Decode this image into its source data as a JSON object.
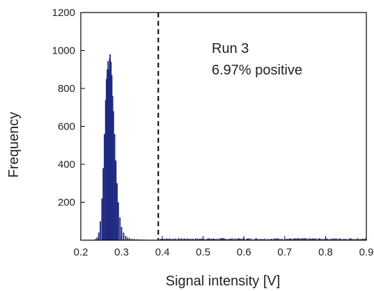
{
  "chart_data": {
    "type": "bar",
    "xlabel": "Signal intensity [V]",
    "ylabel": "Frequency",
    "xlim": [
      0.2,
      0.9
    ],
    "ylim": [
      0,
      1200
    ],
    "xticks": [
      0.2,
      0.3,
      0.4,
      0.5,
      0.6,
      0.7,
      0.8,
      0.9
    ],
    "xtick_labels": [
      "0.2",
      "0.3",
      "0.4",
      "0.5",
      "0.6",
      "0.7",
      "0.8",
      "0.9"
    ],
    "yticks": [
      200,
      400,
      600,
      800,
      1000,
      1200
    ],
    "ytick_labels": [
      "200",
      "400",
      "600",
      "800",
      "1000",
      "1200"
    ],
    "threshold": 0.39,
    "annotations": [
      "Run 3",
      "6.97% positive"
    ],
    "bar_color": "#1f2a80",
    "peak": {
      "center": 0.272,
      "height": 980
    },
    "bars": [
      [
        0.231,
        2
      ],
      [
        0.236,
        6
      ],
      [
        0.24,
        15
      ],
      [
        0.244,
        40
      ],
      [
        0.248,
        100
      ],
      [
        0.252,
        220
      ],
      [
        0.255,
        380
      ],
      [
        0.258,
        560
      ],
      [
        0.261,
        740
      ],
      [
        0.263,
        850
      ],
      [
        0.265,
        900
      ],
      [
        0.267,
        945
      ],
      [
        0.269,
        900
      ],
      [
        0.271,
        960
      ],
      [
        0.272,
        980
      ],
      [
        0.274,
        940
      ],
      [
        0.276,
        870
      ],
      [
        0.278,
        760
      ],
      [
        0.28,
        680
      ],
      [
        0.283,
        560
      ],
      [
        0.286,
        420
      ],
      [
        0.289,
        300
      ],
      [
        0.292,
        200
      ],
      [
        0.296,
        120
      ],
      [
        0.3,
        70
      ],
      [
        0.305,
        40
      ],
      [
        0.31,
        22
      ],
      [
        0.315,
        14
      ],
      [
        0.32,
        10
      ],
      [
        0.326,
        7
      ],
      [
        0.332,
        6
      ],
      [
        0.338,
        5
      ],
      [
        0.345,
        4
      ],
      [
        0.352,
        3
      ],
      [
        0.36,
        3
      ],
      [
        0.37,
        2
      ],
      [
        0.38,
        2
      ],
      [
        0.39,
        2
      ]
    ],
    "tail_level": 10
  }
}
